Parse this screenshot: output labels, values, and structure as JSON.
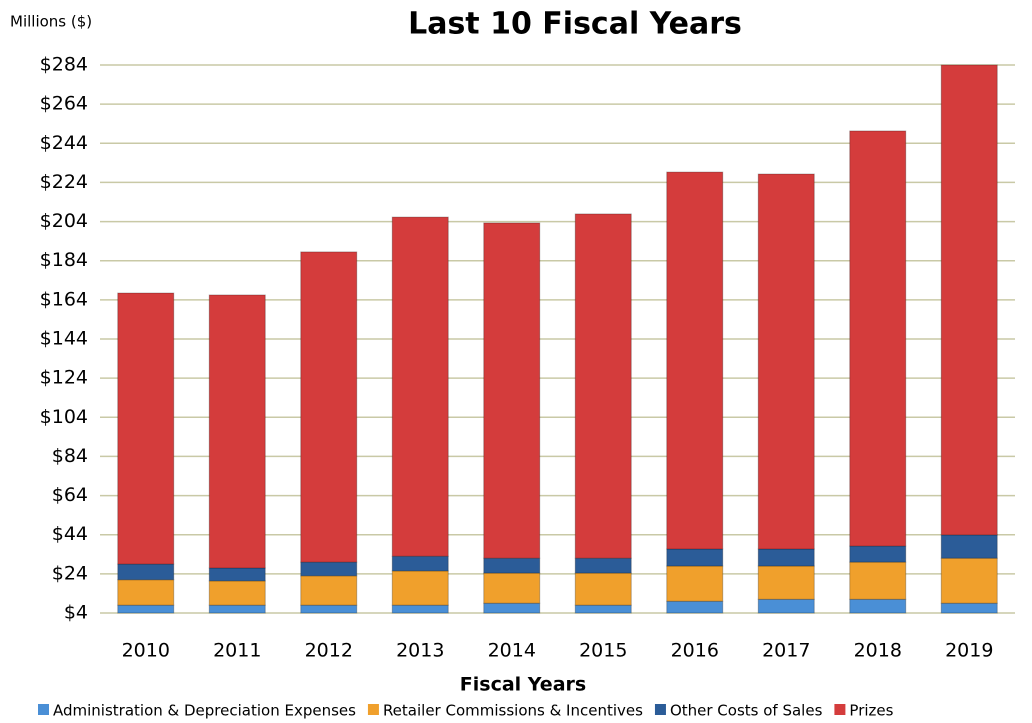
{
  "chart_data": {
    "type": "stacked_bar",
    "title": "Last 10 Fiscal Years",
    "y_label": "Millions ($)",
    "x_label": "Fiscal Years",
    "categories": [
      "2010",
      "2011",
      "2012",
      "2013",
      "2014",
      "2015",
      "2016",
      "2017",
      "2018",
      "2019"
    ],
    "series": [
      {
        "name": "Administration & Depreciation Expenses",
        "color": "#4a8fd6",
        "values": [
          8,
          8,
          8,
          8,
          9,
          8,
          10,
          11,
          11,
          9
        ]
      },
      {
        "name": "Retailer Commissions & Incentives",
        "color": "#f0a02c",
        "values": [
          13,
          12.4,
          15,
          17.5,
          15.4,
          16.4,
          18,
          17,
          19,
          23
        ]
      },
      {
        "name": "Other Costs of Sales",
        "color": "#2b5c98",
        "values": [
          8,
          6.6,
          7,
          7.5,
          7.6,
          7.6,
          8.7,
          8.7,
          8.2,
          11.9
        ]
      },
      {
        "name": "Prizes",
        "color": "#d43c3c",
        "values": [
          138.5,
          139.5,
          158.5,
          173.3,
          171.3,
          175.9,
          192.6,
          191.6,
          212.1,
          240.1
        ]
      }
    ],
    "ylim": [
      4,
      284
    ],
    "yticks": [
      {
        "value": 4,
        "label": "$4"
      },
      {
        "value": 24,
        "label": "$24"
      },
      {
        "value": 44,
        "label": "$44"
      },
      {
        "value": 64,
        "label": "$64"
      },
      {
        "value": 84,
        "label": "$84"
      },
      {
        "value": 104,
        "label": "$104"
      },
      {
        "value": 124,
        "label": "$124"
      },
      {
        "value": 144,
        "label": "$144"
      },
      {
        "value": 164,
        "label": "$164"
      },
      {
        "value": 184,
        "label": "$184"
      },
      {
        "value": 204,
        "label": "$204"
      },
      {
        "value": 224,
        "label": "$224"
      },
      {
        "value": 244,
        "label": "$244"
      },
      {
        "value": 264,
        "label": "$264"
      },
      {
        "value": 284,
        "label": "$284"
      }
    ],
    "grid": true,
    "legend": "bottom"
  }
}
